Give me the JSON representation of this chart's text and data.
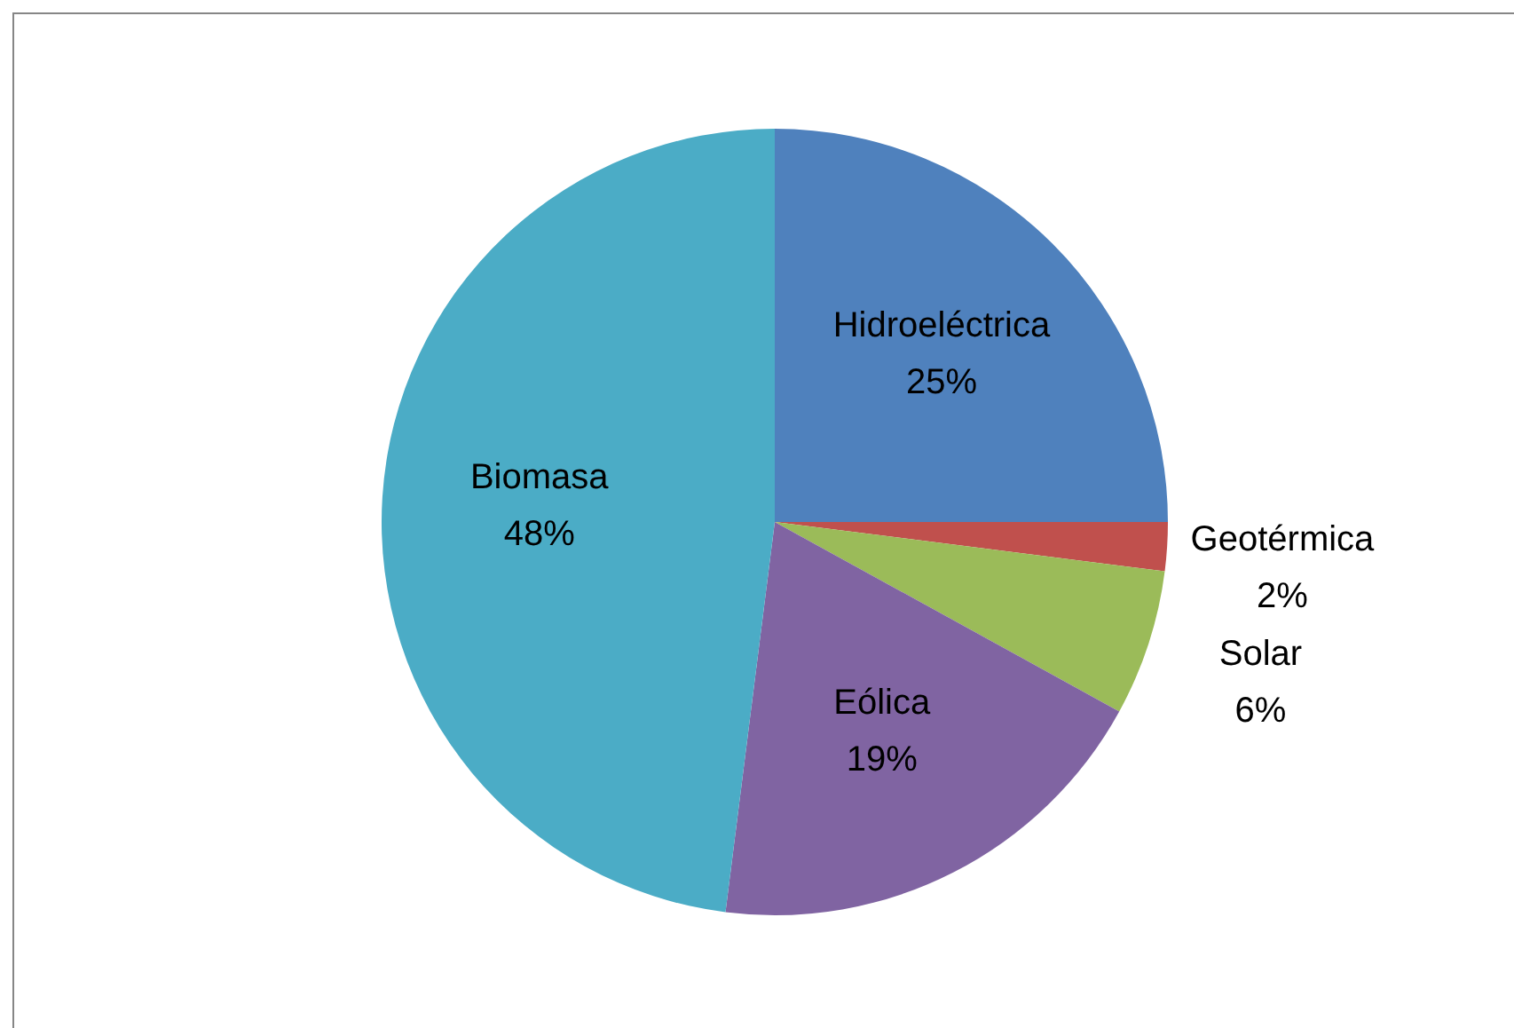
{
  "chart_data": {
    "type": "pie",
    "categories": [
      "Hidroeléctrica",
      "Geotérmica",
      "Solar",
      "Eólica",
      "Biomasa"
    ],
    "values": [
      25,
      2,
      6,
      19,
      48
    ],
    "value_labels": [
      "25%",
      "2%",
      "6%",
      "19%",
      "48%"
    ],
    "colors": [
      "#4f81bd",
      "#c0504d",
      "#9bbb59",
      "#8064a2",
      "#4bacc6"
    ],
    "legend": false
  }
}
